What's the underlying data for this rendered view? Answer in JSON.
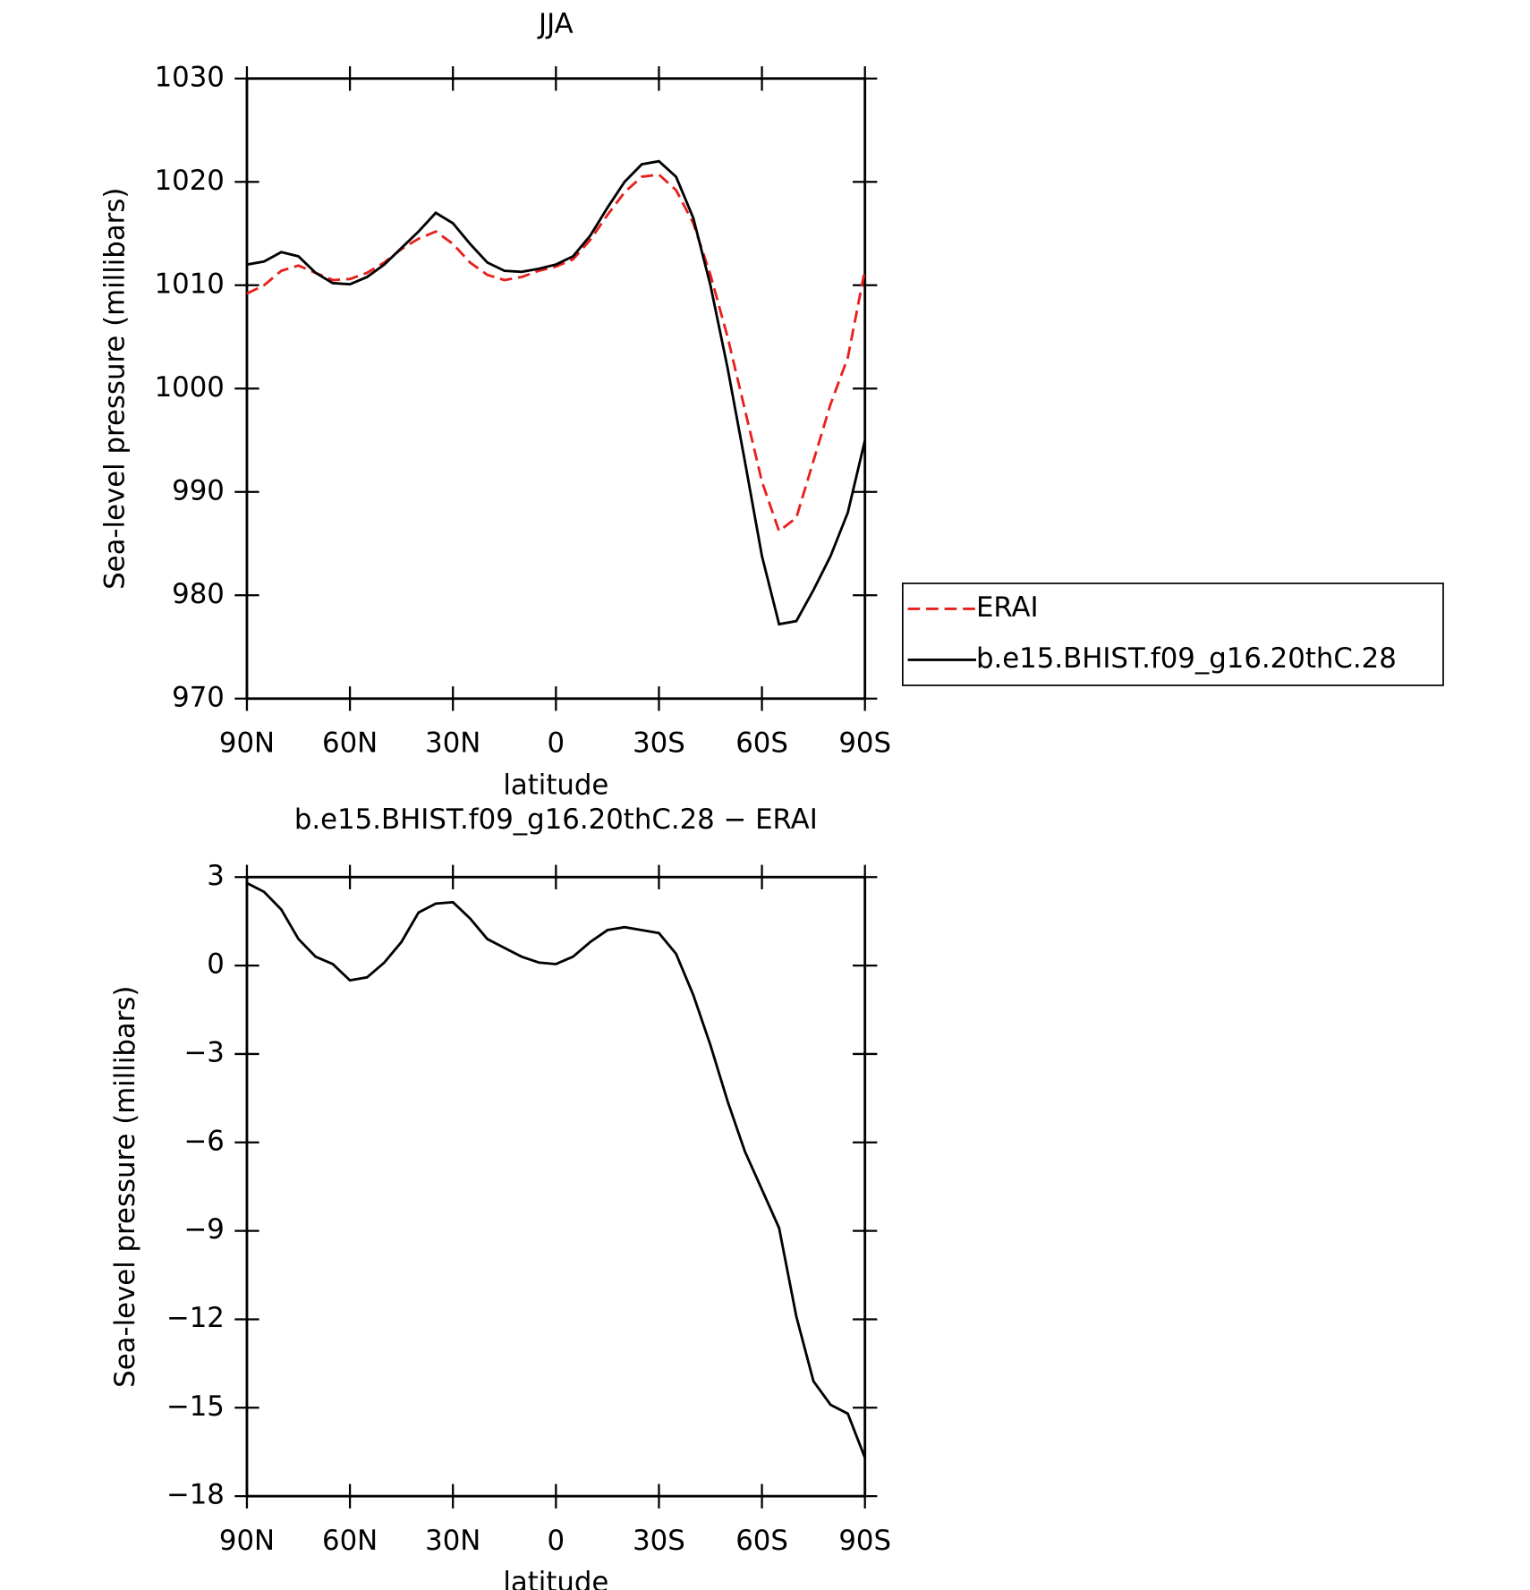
{
  "chart_data": [
    {
      "type": "line",
      "title": "JJA",
      "xlabel": "latitude",
      "ylabel": "Sea-level pressure (millibars)",
      "x": [
        90,
        85,
        80,
        75,
        70,
        65,
        60,
        55,
        50,
        45,
        40,
        35,
        30,
        25,
        20,
        15,
        10,
        5,
        0,
        -5,
        -10,
        -15,
        -20,
        -25,
        -30,
        -35,
        -40,
        -45,
        -50,
        -55,
        -60,
        -65,
        -70,
        -75,
        -80,
        -85,
        -90
      ],
      "xlim": [
        90,
        -90
      ],
      "xticks": [
        {
          "value": 90,
          "label": "90N"
        },
        {
          "value": 60,
          "label": "60N"
        },
        {
          "value": 30,
          "label": "30N"
        },
        0,
        {
          "value": -30,
          "label": "30S"
        },
        {
          "value": -60,
          "label": "60S"
        },
        {
          "value": -90,
          "label": "90S"
        }
      ],
      "ylim": [
        970,
        1030
      ],
      "yticks": [
        970,
        980,
        990,
        1000,
        1010,
        1020,
        1030
      ],
      "legend": "right",
      "series": [
        {
          "name": "ERAI",
          "color": "#e8201c",
          "linestyle": "dashed",
          "values": [
            1009.2,
            1010,
            1011.4,
            1011.9,
            1011.2,
            1010.5,
            1010.6,
            1011.2,
            1012.2,
            1013.5,
            1014.5,
            1015.2,
            1014,
            1012.2,
            1011,
            1010.5,
            1010.8,
            1011.4,
            1011.8,
            1012.5,
            1014.4,
            1016.8,
            1019,
            1020.5,
            1020.7,
            1019.2,
            1016,
            1011,
            1005,
            998,
            991,
            986.2,
            987.5,
            993,
            998.5,
            1003,
            1011.5
          ]
        },
        {
          "name": "b.e15.BHIST.f09_g16.20thC.28",
          "color": "#000000",
          "linestyle": "solid",
          "values": [
            1012,
            1012.3,
            1013.2,
            1012.8,
            1011.2,
            1010.2,
            1010.1,
            1010.8,
            1012,
            1013.6,
            1015.2,
            1017,
            1016,
            1014,
            1012.2,
            1011.4,
            1011.3,
            1011.6,
            1012,
            1012.8,
            1014.8,
            1017.5,
            1020,
            1021.7,
            1022,
            1020.5,
            1016.5,
            1010,
            1002,
            993,
            983.8,
            977.2,
            977.5,
            980.5,
            983.8,
            988,
            995
          ]
        }
      ]
    },
    {
      "type": "line",
      "title": "b.e15.BHIST.f09_g16.20thC.28 − ERAI",
      "xlabel": "latitude",
      "ylabel": "Sea-level pressure (millibars)",
      "x": [
        90,
        85,
        80,
        75,
        70,
        65,
        60,
        55,
        50,
        45,
        40,
        35,
        30,
        25,
        20,
        15,
        10,
        5,
        0,
        -5,
        -10,
        -15,
        -20,
        -25,
        -30,
        -35,
        -40,
        -45,
        -50,
        -55,
        -60,
        -65,
        -70,
        -75,
        -80,
        -85,
        -90
      ],
      "xlim": [
        90,
        -90
      ],
      "xticks": [
        {
          "value": 90,
          "label": "90N"
        },
        {
          "value": 60,
          "label": "60N"
        },
        {
          "value": 30,
          "label": "30N"
        },
        0,
        {
          "value": -30,
          "label": "30S"
        },
        {
          "value": -60,
          "label": "60S"
        },
        {
          "value": -90,
          "label": "90S"
        }
      ],
      "ylim": [
        -18,
        3
      ],
      "yticks": [
        {
          "value": -18,
          "label": "−18"
        },
        {
          "value": -15,
          "label": "−15"
        },
        {
          "value": -12,
          "label": "−12"
        },
        {
          "value": -9,
          "label": "−9"
        },
        {
          "value": -6,
          "label": "−6"
        },
        {
          "value": -3,
          "label": "−3"
        },
        0,
        3
      ],
      "series": [
        {
          "color": "#000000",
          "linestyle": "solid",
          "values": [
            2.8,
            2.5,
            1.9,
            0.9,
            0.3,
            0.05,
            -0.5,
            -0.4,
            0.1,
            0.8,
            1.8,
            2.1,
            2.15,
            1.6,
            0.9,
            0.6,
            0.3,
            0.1,
            0.05,
            0.3,
            0.8,
            1.2,
            1.3,
            1.2,
            1.1,
            0.4,
            -1,
            -2.7,
            -4.6,
            -6.3,
            -7.6,
            -8.9,
            -11.9,
            -14.1,
            -14.9,
            -15.2,
            -16.7
          ]
        }
      ]
    }
  ]
}
